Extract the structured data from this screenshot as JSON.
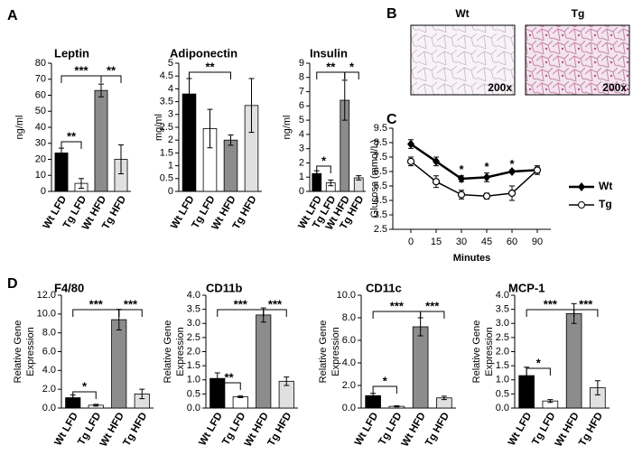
{
  "panel_labels": [
    "A",
    "B",
    "C",
    "D"
  ],
  "micrographs": [
    {
      "label": "Wt",
      "magnification": "200x"
    },
    {
      "label": "Tg",
      "magnification": "200x"
    }
  ],
  "chart_data": [
    {
      "type": "bar",
      "title": "Leptin",
      "ylabel": "ng/ml",
      "categories": [
        "Wt LFD",
        "Tg LFD",
        "Wt HFD",
        "Tg HFD"
      ],
      "values": [
        24,
        5,
        63,
        20
      ],
      "errors": [
        3,
        3,
        4,
        9
      ],
      "colors": [
        "#000000",
        "#ffffff",
        "#8c8c8c",
        "#e0e0e0"
      ],
      "ylim": [
        0,
        80
      ],
      "yticks": [
        0,
        10,
        20,
        30,
        40,
        50,
        60,
        70,
        80
      ],
      "significance": [
        "**",
        "***",
        "**"
      ]
    },
    {
      "type": "bar",
      "title": "Adiponectin",
      "ylabel": "mg/ml",
      "categories": [
        "Wt LFD",
        "Tg LFD",
        "Wt HFD",
        "Tg HFD"
      ],
      "values": [
        3.8,
        2.45,
        2.0,
        3.35
      ],
      "errors": [
        0.6,
        0.75,
        0.2,
        1.05
      ],
      "colors": [
        "#000000",
        "#ffffff",
        "#8c8c8c",
        "#e0e0e0"
      ],
      "ylim": [
        0,
        5
      ],
      "yticks": [
        0,
        0.5,
        1,
        1.5,
        2,
        2.5,
        3,
        3.5,
        4,
        4.5,
        5
      ],
      "significance": [
        "**"
      ]
    },
    {
      "type": "bar",
      "title": "Insulin",
      "ylabel": "ng/ml",
      "categories": [
        "Wt LFD",
        "Tg LFD",
        "Wt HFD",
        "Tg HFD"
      ],
      "values": [
        1.25,
        0.6,
        6.4,
        0.95
      ],
      "errors": [
        0.2,
        0.2,
        1.4,
        0.15
      ],
      "colors": [
        "#000000",
        "#ffffff",
        "#8c8c8c",
        "#e0e0e0"
      ],
      "ylim": [
        0,
        9
      ],
      "yticks": [
        0,
        1,
        2,
        3,
        4,
        5,
        6,
        7,
        8,
        9
      ],
      "significance": [
        "*",
        "**",
        "*"
      ]
    },
    {
      "type": "line",
      "ylabel": "Glucose (mmol/L)",
      "xlabel": "Minutes",
      "categories": [
        "0",
        "15",
        "30",
        "45",
        "60",
        "90"
      ],
      "series": [
        {
          "name": "Wt",
          "color": "#000000",
          "values": [
            8.4,
            7.2,
            6.0,
            6.1,
            6.5,
            6.6
          ],
          "errors": [
            0.3,
            0.3,
            0.2,
            0.3,
            0.1,
            0.2
          ]
        },
        {
          "name": "Tg",
          "color": "#000000",
          "values": [
            7.2,
            5.8,
            4.9,
            4.8,
            5.0,
            6.6
          ],
          "errors": [
            0.3,
            0.4,
            0.3,
            0.2,
            0.5,
            0.3
          ]
        }
      ],
      "ylim": [
        2.5,
        9.5
      ],
      "yticks": [
        2.5,
        3.5,
        4.5,
        5.5,
        6.5,
        7.5,
        8.5,
        9.5
      ],
      "significance": [
        "*",
        "*",
        "*"
      ],
      "legend": "right"
    },
    {
      "type": "bar",
      "title": "F4/80",
      "ylabel_lines": [
        "Relative Gene",
        "Expression"
      ],
      "categories": [
        "Wt LFD",
        "Tg LFD",
        "Wt HFD",
        "Tg HFD"
      ],
      "values": [
        1.1,
        0.3,
        9.4,
        1.5
      ],
      "errors": [
        0.3,
        0.1,
        1.1,
        0.5
      ],
      "colors": [
        "#000000",
        "#ffffff",
        "#8c8c8c",
        "#e0e0e0"
      ],
      "ylim": [
        0,
        12
      ],
      "yticks": [
        {
          "value": 0,
          "label": "0.0"
        },
        {
          "value": 2,
          "label": "2.0"
        },
        {
          "value": 4,
          "label": "4.0"
        },
        {
          "value": 6,
          "label": "6.0"
        },
        {
          "value": 8,
          "label": "8.0"
        },
        {
          "value": 10,
          "label": "10.0"
        },
        {
          "value": 12,
          "label": "12.0"
        }
      ],
      "significance": [
        "*",
        "***",
        "***"
      ]
    },
    {
      "type": "bar",
      "title": "CD11b",
      "ylabel_lines": [
        "Relative Gene",
        "Expression"
      ],
      "categories": [
        "Wt LFD",
        "Tg LFD",
        "Wt HFD",
        "Tg HFD"
      ],
      "values": [
        1.05,
        0.4,
        3.3,
        0.95
      ],
      "errors": [
        0.2,
        0.03,
        0.25,
        0.15
      ],
      "colors": [
        "#000000",
        "#ffffff",
        "#8c8c8c",
        "#e0e0e0"
      ],
      "ylim": [
        0,
        4
      ],
      "yticks": [
        {
          "value": 0,
          "label": "0.0"
        },
        0.5,
        {
          "value": 1,
          "label": "1.0"
        },
        1.5,
        {
          "value": 2,
          "label": "2.0"
        },
        2.5,
        {
          "value": 3,
          "label": "3.0"
        },
        3.5,
        {
          "value": 4,
          "label": "4.0"
        }
      ],
      "significance": [
        "**",
        "***",
        "***"
      ]
    },
    {
      "type": "bar",
      "title": "CD11c",
      "ylabel_lines": [
        "Relative Gene",
        "Expression"
      ],
      "categories": [
        "Wt LFD",
        "Tg LFD",
        "Wt HFD",
        "Tg HFD"
      ],
      "values": [
        1.1,
        0.15,
        7.2,
        0.9
      ],
      "errors": [
        0.2,
        0.05,
        0.8,
        0.15
      ],
      "colors": [
        "#000000",
        "#ffffff",
        "#8c8c8c",
        "#e0e0e0"
      ],
      "ylim": [
        0,
        10
      ],
      "yticks": [
        {
          "value": 0,
          "label": "0.0"
        },
        {
          "value": 2,
          "label": "2.0"
        },
        {
          "value": 4,
          "label": "4.0"
        },
        {
          "value": 6,
          "label": "6.0"
        },
        {
          "value": 8,
          "label": "8.0"
        },
        {
          "value": 10,
          "label": "10.0"
        }
      ],
      "significance": [
        "*",
        "***",
        "***"
      ]
    },
    {
      "type": "bar",
      "title": "MCP-1",
      "ylabel_lines": [
        "Relative Gene",
        "Expression"
      ],
      "categories": [
        "Wt LFD",
        "Tg LFD",
        "Wt HFD",
        "Tg HFD"
      ],
      "values": [
        1.15,
        0.25,
        3.35,
        0.72
      ],
      "errors": [
        0.3,
        0.05,
        0.35,
        0.25
      ],
      "colors": [
        "#000000",
        "#ffffff",
        "#8c8c8c",
        "#e0e0e0"
      ],
      "ylim": [
        0,
        4
      ],
      "yticks": [
        {
          "value": 0,
          "label": "0.0"
        },
        0.5,
        {
          "value": 1,
          "label": "1.0"
        },
        1.5,
        {
          "value": 2,
          "label": "2.0"
        },
        2.5,
        {
          "value": 3,
          "label": "3.0"
        },
        3.5,
        {
          "value": 4,
          "label": "4.0"
        }
      ],
      "significance": [
        "*",
        "***",
        "***"
      ]
    }
  ]
}
